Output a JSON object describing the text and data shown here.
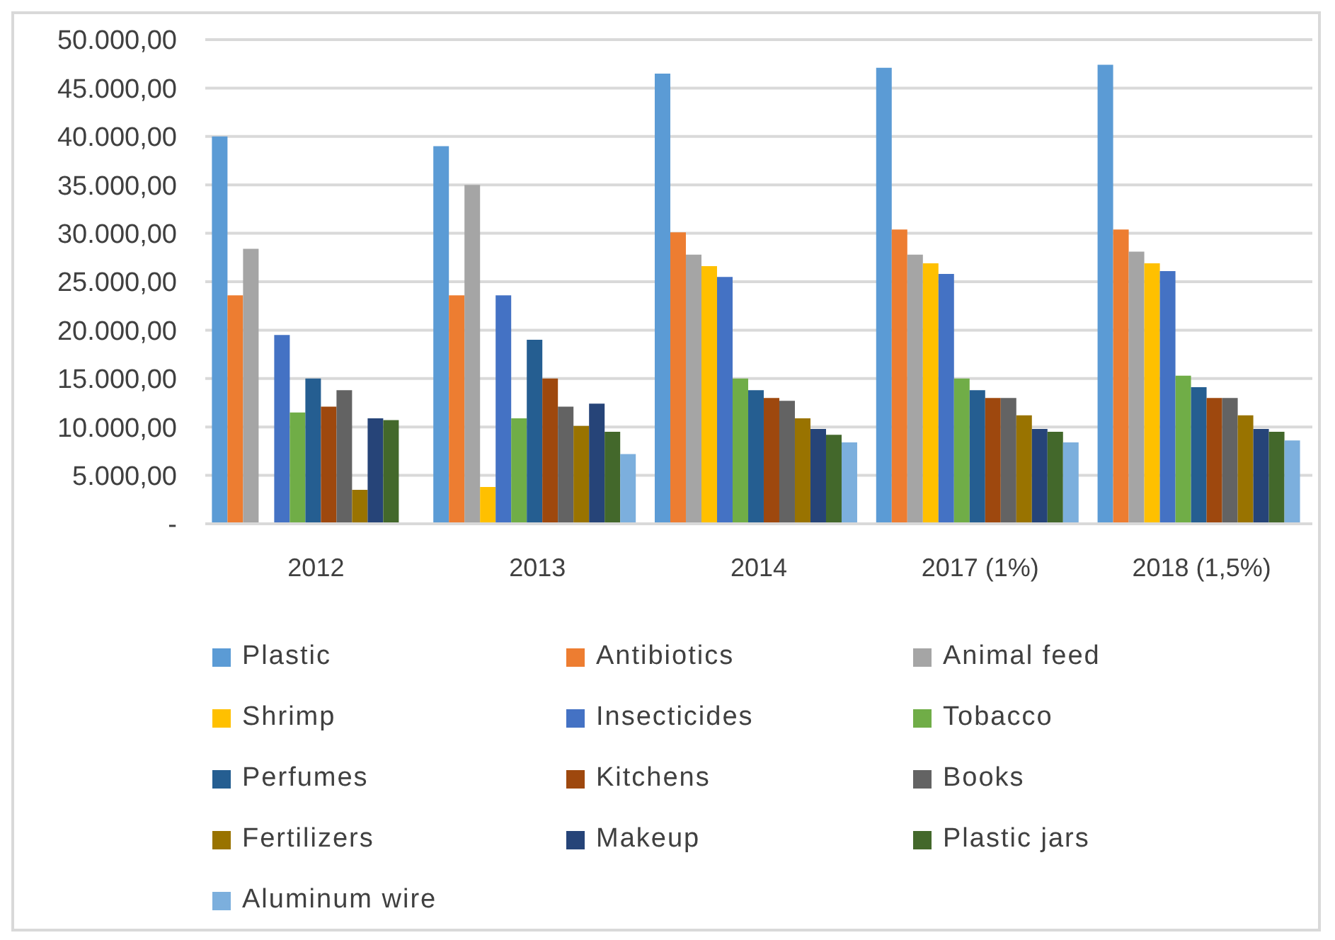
{
  "chart_data": {
    "type": "bar",
    "categories": [
      "2012",
      "2013",
      "2014",
      "2017 (1%)",
      "2018 (1,5%)"
    ],
    "series": [
      {
        "name": "Plastic",
        "color": "#5b9bd5",
        "values": [
          40000,
          39000,
          46500,
          47100,
          47400
        ]
      },
      {
        "name": "Antibiotics",
        "color": "#ed7d31",
        "values": [
          23600,
          23600,
          30100,
          30400,
          30400
        ]
      },
      {
        "name": "Animal feed",
        "color": "#a5a5a5",
        "values": [
          28400,
          35000,
          27800,
          27800,
          28100
        ]
      },
      {
        "name": "Shrimp",
        "color": "#ffc000",
        "values": [
          null,
          3800,
          26600,
          26900,
          26900
        ]
      },
      {
        "name": "Insecticides",
        "color": "#4472c4",
        "values": [
          19500,
          23600,
          25500,
          25800,
          26100
        ]
      },
      {
        "name": "Tobacco",
        "color": "#70ad47",
        "values": [
          11500,
          10900,
          15000,
          15000,
          15300
        ]
      },
      {
        "name": "Perfumes",
        "color": "#255e91",
        "values": [
          15000,
          19000,
          13800,
          13800,
          14100
        ]
      },
      {
        "name": "Kitchens",
        "color": "#9e480e",
        "values": [
          12100,
          15000,
          13000,
          13000,
          13000
        ]
      },
      {
        "name": "Books",
        "color": "#636363",
        "values": [
          13800,
          12100,
          12700,
          13000,
          13000
        ]
      },
      {
        "name": "Fertilizers",
        "color": "#997300",
        "values": [
          3500,
          10100,
          10900,
          11200,
          11200
        ]
      },
      {
        "name": "Makeup",
        "color": "#264478",
        "values": [
          10900,
          12400,
          9800,
          9800,
          9800
        ]
      },
      {
        "name": "Plastic jars",
        "color": "#43682b",
        "values": [
          10700,
          9500,
          9200,
          9500,
          9500
        ]
      },
      {
        "name": "Aluminum wire",
        "color": "#7cafdd",
        "values": [
          null,
          7200,
          8400,
          8400,
          8600
        ]
      }
    ],
    "ylim": [
      0,
      50000
    ],
    "yticks": [
      {
        "value": 0,
        "label": "-"
      },
      {
        "value": 5000,
        "label": "5.000,00"
      },
      {
        "value": 10000,
        "label": "10.000,00"
      },
      {
        "value": 15000,
        "label": "15.000,00"
      },
      {
        "value": 20000,
        "label": "20.000,00"
      },
      {
        "value": 25000,
        "label": "25.000,00"
      },
      {
        "value": 30000,
        "label": "30.000,00"
      },
      {
        "value": 35000,
        "label": "35.000,00"
      },
      {
        "value": 40000,
        "label": "40.000,00"
      },
      {
        "value": 45000,
        "label": "45.000,00"
      },
      {
        "value": 50000,
        "label": "50.000,00"
      }
    ],
    "grid": "y",
    "legend": "bottom"
  }
}
